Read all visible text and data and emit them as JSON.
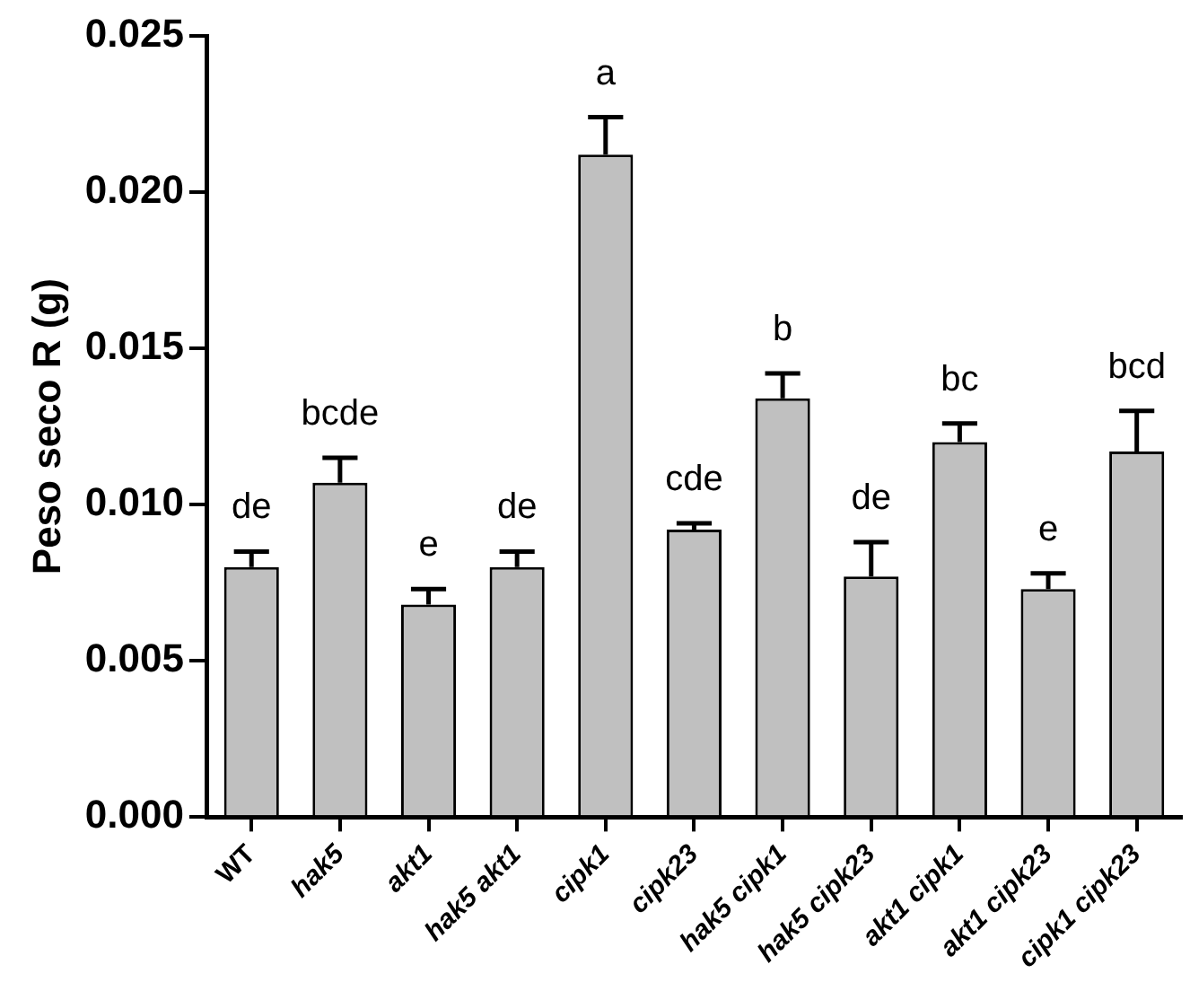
{
  "chart_data": {
    "type": "bar",
    "ylabel": "Peso seco R (g)",
    "categories": [
      "WT",
      "hak5",
      "akt1",
      "hak5 akt1",
      "cipk1",
      "cipk23",
      "hak5 cipk1",
      "hak5 cipk23",
      "akt1 cipk1",
      "akt1 cipk23",
      "cipk1 cipk23"
    ],
    "values": [
      0.008,
      0.0107,
      0.0068,
      0.008,
      0.0212,
      0.0092,
      0.0134,
      0.0077,
      0.012,
      0.0073,
      0.0117
    ],
    "errors": [
      0.0005,
      0.0008,
      0.0005,
      0.0005,
      0.0012,
      0.0002,
      0.0008,
      0.0011,
      0.0006,
      0.0005,
      0.0013
    ],
    "color": "#c0c0c0",
    "ylim": [
      0,
      0.025
    ],
    "yticks": [
      {
        "value": 0,
        "label": "0.000"
      },
      {
        "value": 0.005,
        "label": "0.005"
      },
      {
        "value": 0.01,
        "label": "0.010"
      },
      {
        "value": 0.015,
        "label": "0.015"
      },
      {
        "value": 0.02,
        "label": "0.020"
      },
      {
        "value": 0.025,
        "label": "0.025"
      }
    ],
    "grid": false,
    "legend": false,
    "annotations": [
      {
        "text": "de",
        "x": "WT",
        "y": 0.0085
      },
      {
        "text": "bcde",
        "x": "hak5",
        "y": 0.0115
      },
      {
        "text": "e",
        "x": "akt1",
        "y": 0.0073
      },
      {
        "text": "de",
        "x": "hak5 akt1",
        "y": 0.0085
      },
      {
        "text": "a",
        "x": "cipk1",
        "y": 0.0224
      },
      {
        "text": "cde",
        "x": "cipk23",
        "y": 0.0094
      },
      {
        "text": "b",
        "x": "hak5 cipk1",
        "y": 0.0142
      },
      {
        "text": "de",
        "x": "hak5 cipk23",
        "y": 0.0088
      },
      {
        "text": "bc",
        "x": "akt1 cipk1",
        "y": 0.0126
      },
      {
        "text": "e",
        "x": "akt1 cipk23",
        "y": 0.0078
      },
      {
        "text": "bcd",
        "x": "cipk1 cipk23",
        "y": 0.013
      }
    ]
  }
}
